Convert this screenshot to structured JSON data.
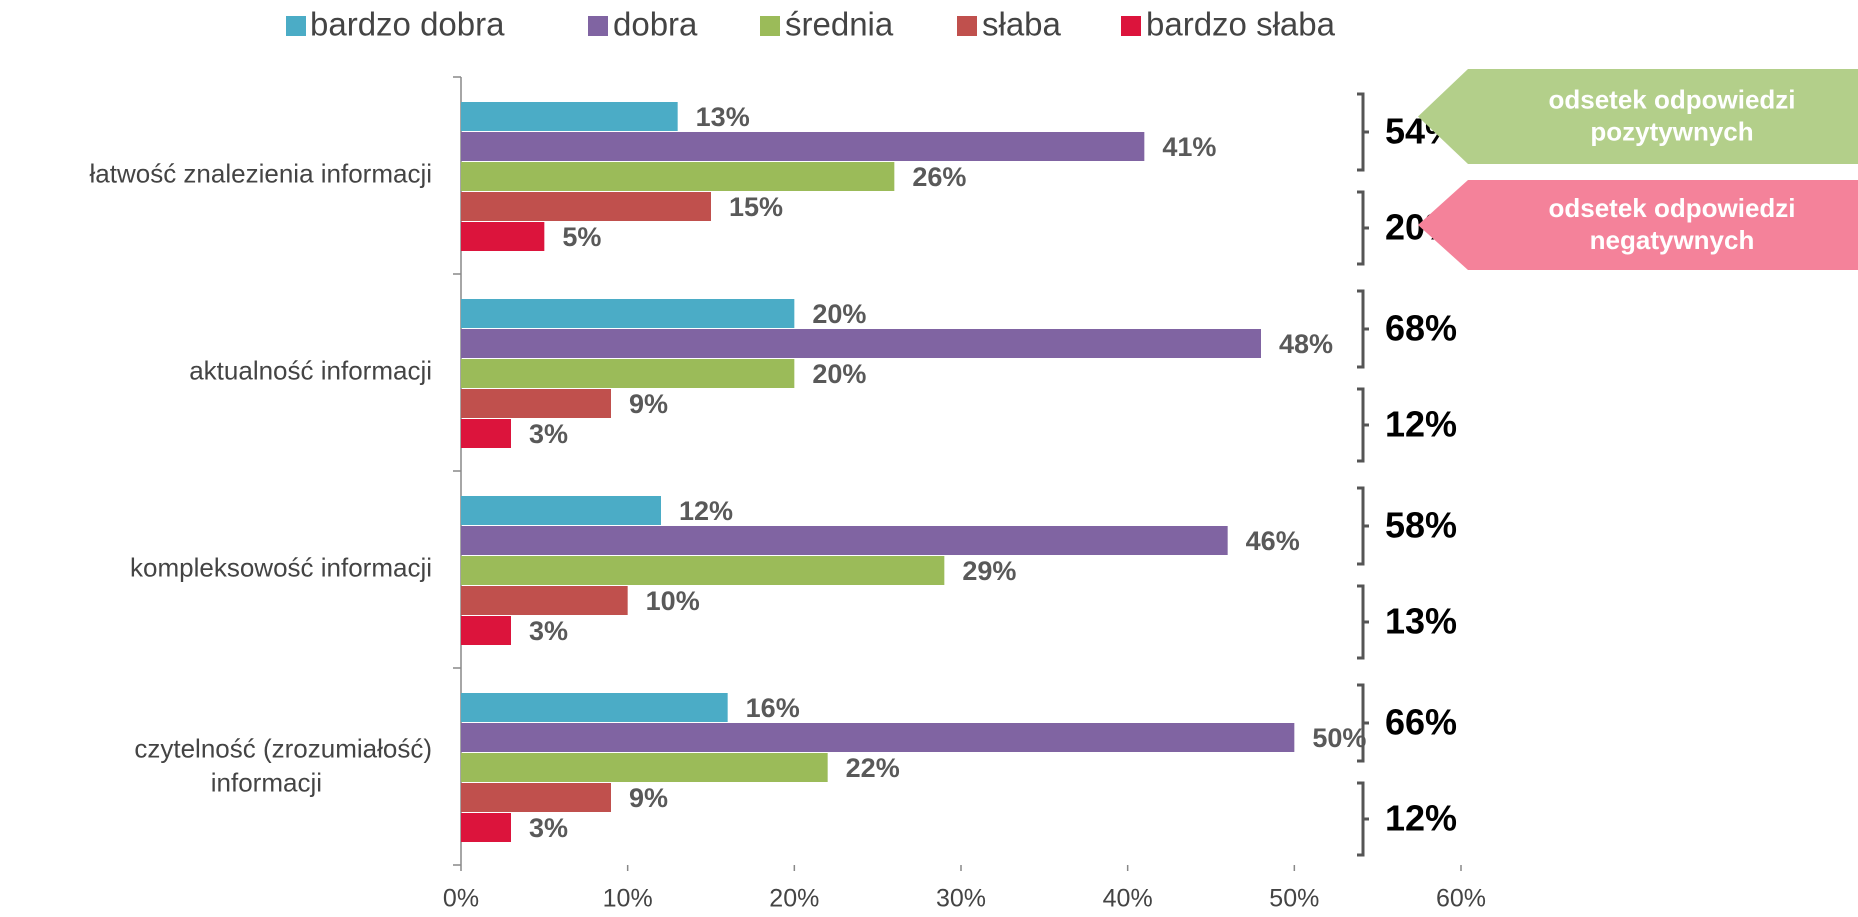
{
  "chart_data": {
    "type": "bar",
    "orientation": "horizontal",
    "categories": [
      "łatwość znalezienia informacji",
      "aktualność informacji",
      "kompleksowość informacji",
      "czytelność (zrozumiałość)\ninformacji"
    ],
    "series": [
      {
        "name": "bardzo dobra",
        "color": "#4bacc6",
        "values": [
          13,
          20,
          12,
          16
        ],
        "value_labels": [
          "13%",
          "20%",
          "12%",
          "16%"
        ]
      },
      {
        "name": "dobra",
        "color": "#8064a2",
        "values": [
          41,
          48,
          46,
          50
        ],
        "value_labels": [
          "41%",
          "48%",
          "46%",
          "50%"
        ]
      },
      {
        "name": "średnia",
        "color": "#9bbb59",
        "values": [
          26,
          20,
          29,
          22
        ],
        "value_labels": [
          "26%",
          "20%",
          "29%",
          "22%"
        ]
      },
      {
        "name": "słaba",
        "color": "#c0504d",
        "values": [
          15,
          9,
          10,
          9
        ],
        "value_labels": [
          "15%",
          "9%",
          "10%",
          "9%"
        ]
      },
      {
        "name": "bardzo słaba",
        "color": "#dc143c",
        "values": [
          5,
          3,
          3,
          3
        ],
        "value_labels": [
          "5%",
          "3%",
          "3%",
          "3%"
        ]
      }
    ],
    "xlim": [
      0,
      60
    ],
    "xticks": [
      {
        "value": 0,
        "label": "0%"
      },
      {
        "value": 10,
        "label": "10%"
      },
      {
        "value": 20,
        "label": "20%"
      },
      {
        "value": 30,
        "label": "30%"
      },
      {
        "value": 40,
        "label": "40%"
      },
      {
        "value": 50,
        "label": "50%"
      },
      {
        "value": 60,
        "label": "60%"
      }
    ],
    "legend": "top",
    "positive_totals": [
      {
        "value": 54,
        "label": "54%"
      },
      {
        "value": 68,
        "label": "68%"
      },
      {
        "value": 58,
        "label": "58%"
      },
      {
        "value": 66,
        "label": "66%"
      }
    ],
    "negative_totals": [
      {
        "value": 20,
        "label": "20%"
      },
      {
        "value": 12,
        "label": "12%"
      },
      {
        "value": 13,
        "label": "13%"
      },
      {
        "value": 12,
        "label": "12%"
      }
    ],
    "callouts": [
      {
        "lines": [
          "odsetek odpowiedzi",
          "pozytywnych"
        ],
        "color": "#b3cf8a"
      },
      {
        "lines": [
          "odsetek odpowiedzi",
          "negatywnych"
        ],
        "color": "#f4829a"
      }
    ]
  }
}
